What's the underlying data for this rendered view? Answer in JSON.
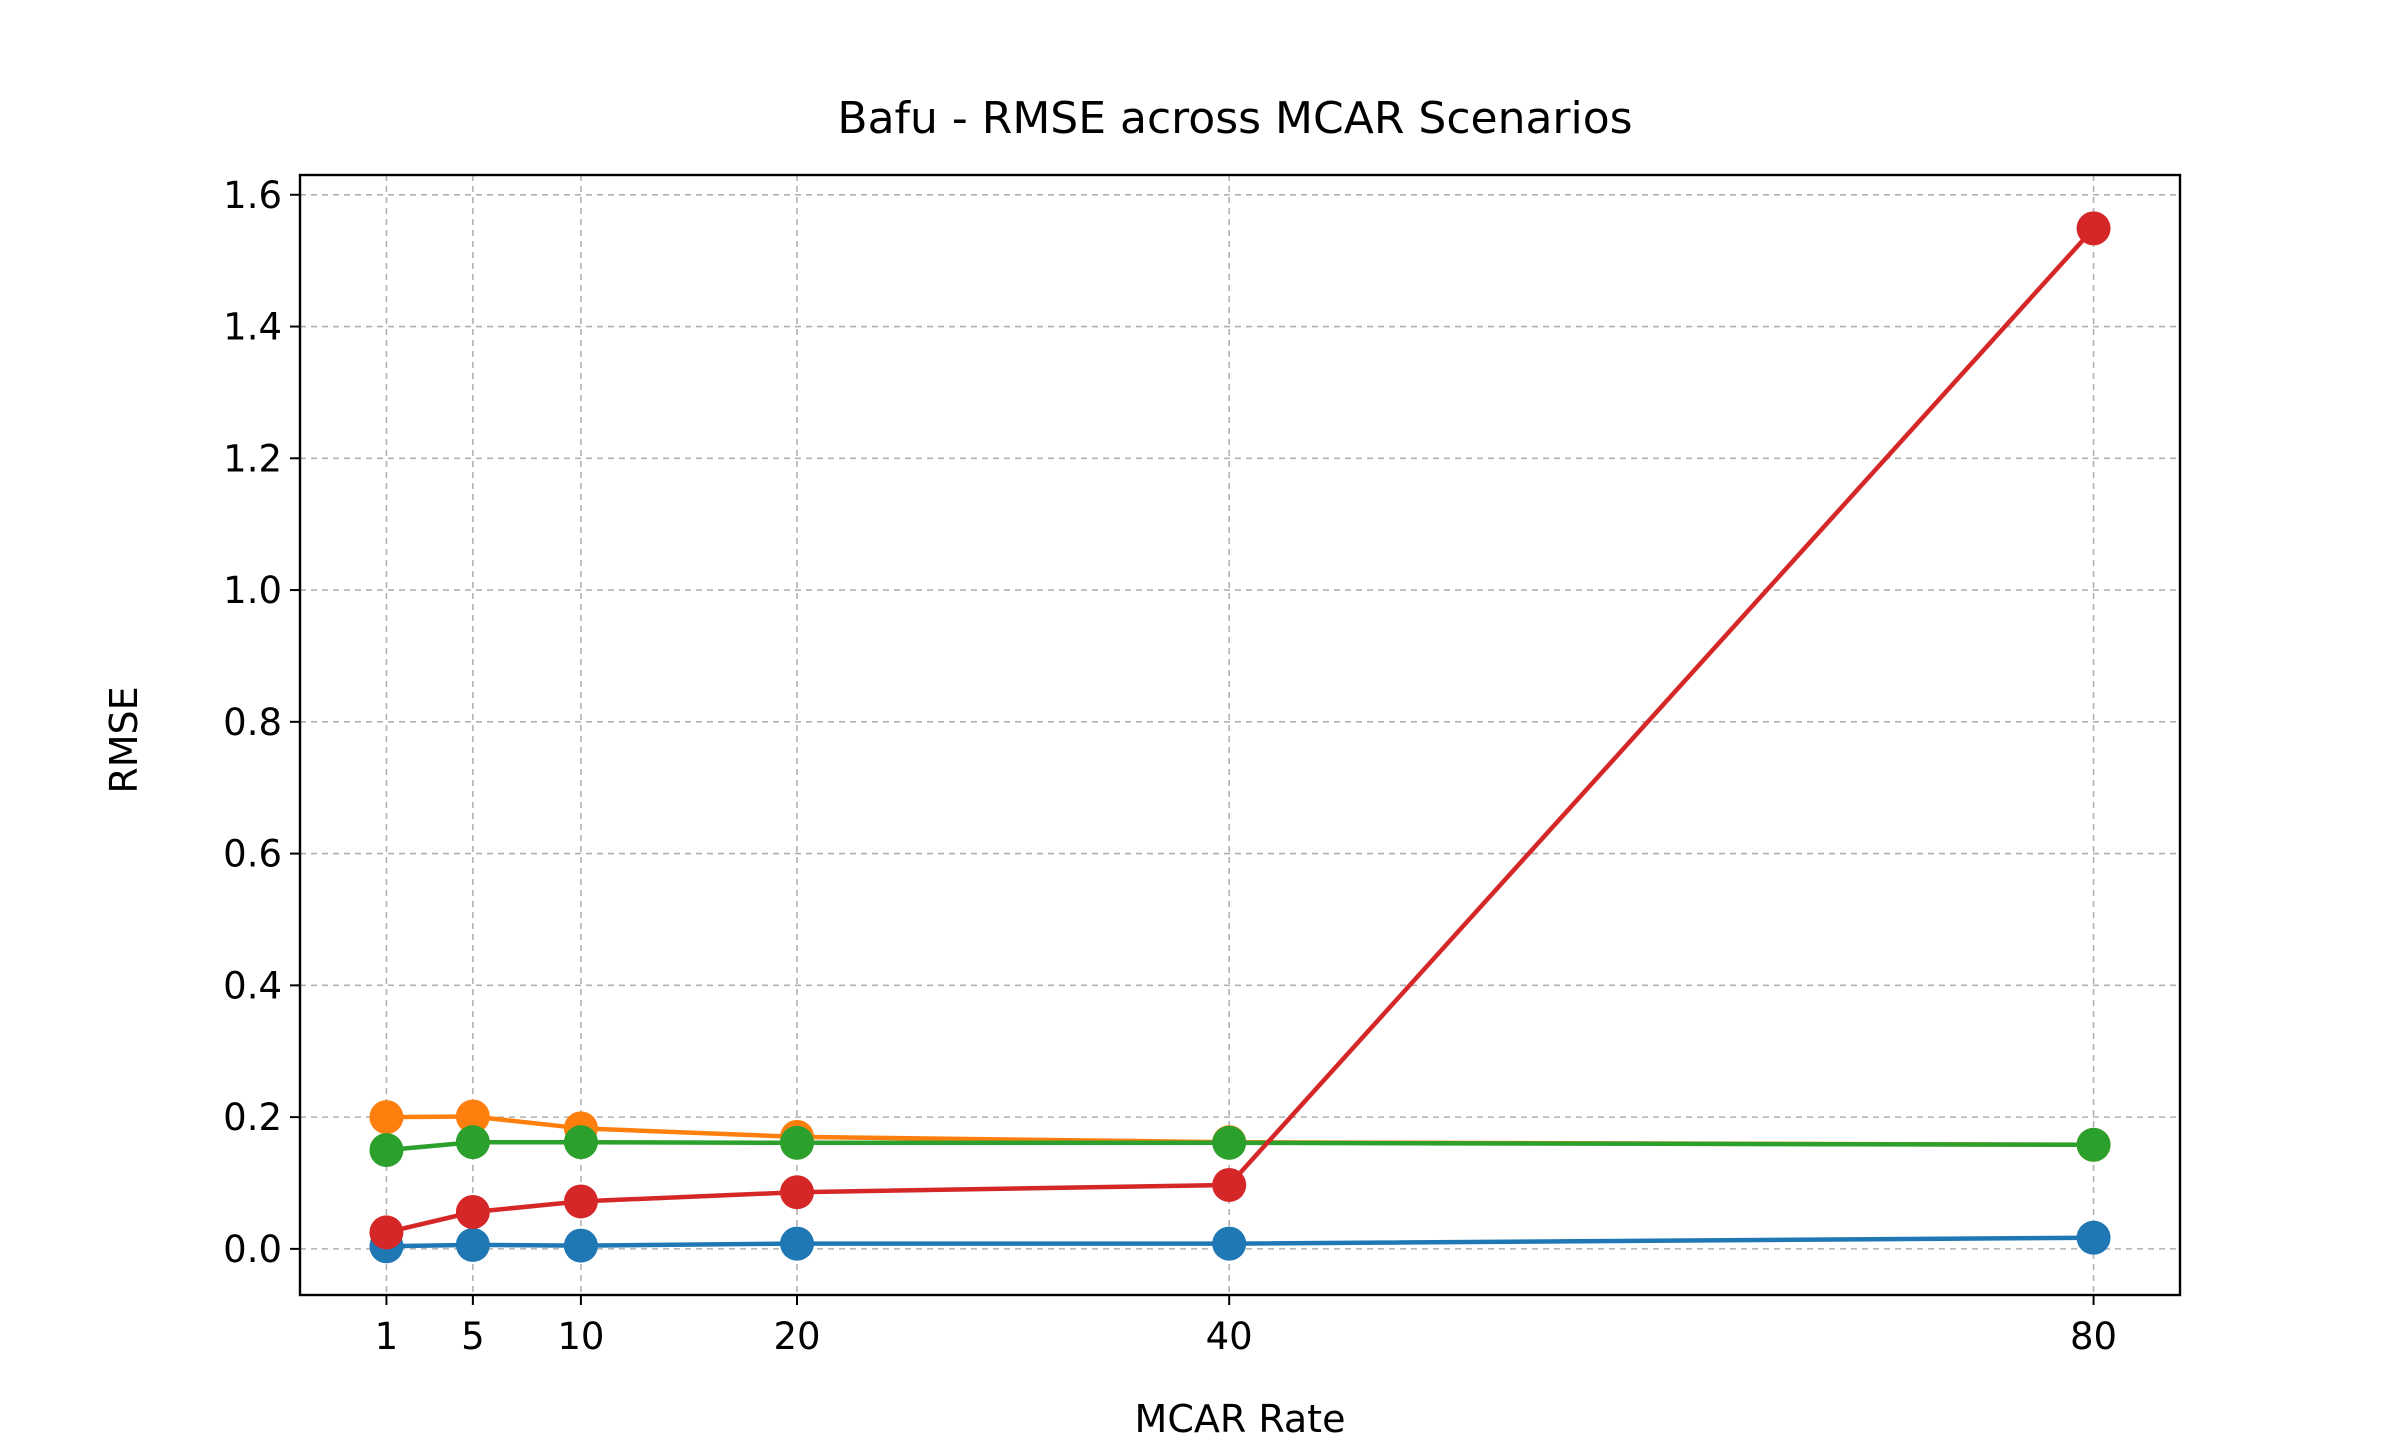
{
  "chart_data": {
    "type": "line",
    "title": "Bafu - RMSE across MCAR Scenarios",
    "xlabel": "MCAR Rate",
    "ylabel": "RMSE",
    "x": [
      1,
      5,
      10,
      20,
      40,
      80
    ],
    "xlim": [
      -3,
      84
    ],
    "ylim": [
      -0.07,
      1.63
    ],
    "yticks": [
      0.0,
      0.2,
      0.4,
      0.6,
      0.8,
      1.0,
      1.2,
      1.4,
      1.6
    ],
    "ytick_labels": [
      "0.0",
      "0.2",
      "0.4",
      "0.6",
      "0.8",
      "1.0",
      "1.2",
      "1.4",
      "1.6"
    ],
    "xtick_labels": [
      "1",
      "5",
      "10",
      "20",
      "40",
      "80"
    ],
    "grid": true,
    "series": [
      {
        "color": "#1f77b4",
        "values": [
          0.004,
          0.006,
          0.005,
          0.008,
          0.008,
          0.017
        ]
      },
      {
        "color": "#ff7f0e",
        "values": [
          0.2,
          0.201,
          0.183,
          0.17,
          0.162,
          0.158
        ]
      },
      {
        "color": "#2ca02c",
        "values": [
          0.15,
          0.162,
          0.162,
          0.161,
          0.161,
          0.158
        ]
      },
      {
        "color": "#d62728",
        "values": [
          0.025,
          0.056,
          0.072,
          0.086,
          0.097,
          1.549
        ]
      }
    ]
  }
}
